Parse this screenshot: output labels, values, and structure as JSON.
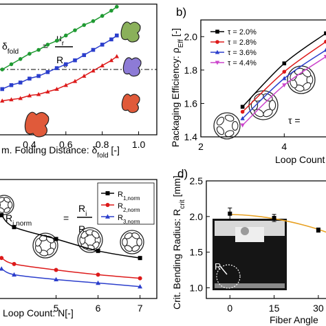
{
  "chart_data": [
    {
      "panel_id": "a",
      "type": "line",
      "panel_label": "",
      "xlabel": "m. Folding Distance: δ",
      "xlabel_sub": "fold",
      "xlabel_unit": " [-]",
      "xlim": [
        0.2,
        1.1
      ],
      "xticks": [
        0.4,
        0.6,
        0.8,
        1.0
      ],
      "xtick_labels": [
        "0.4",
        "0.6",
        "0.8",
        "1.0"
      ],
      "ylim": [
        0,
        1
      ],
      "formula": {
        "lhs": "δ",
        "lhs_sub": "fold",
        "numerator": "u",
        "numerator_sub": "r",
        "denominator": "R",
        "denominator_sub": "0"
      },
      "reference_line": 0.5,
      "series": [
        {
          "color": "#1f9a32",
          "marker": "circle",
          "x": [
            0.25,
            0.3,
            0.35,
            0.4,
            0.45,
            0.5,
            0.55,
            0.6,
            0.65,
            0.7,
            0.75,
            0.8,
            0.85,
            0.88
          ],
          "y": [
            0.5,
            0.54,
            0.58,
            0.62,
            0.65,
            0.69,
            0.72,
            0.76,
            0.8,
            0.84,
            0.87,
            0.91,
            0.95,
            0.98
          ]
        },
        {
          "color": "#2b3ecc",
          "marker": "square",
          "x": [
            0.25,
            0.3,
            0.35,
            0.4,
            0.45,
            0.5,
            0.55,
            0.6,
            0.65,
            0.7,
            0.75,
            0.8,
            0.85,
            0.88
          ],
          "y": [
            0.35,
            0.38,
            0.4,
            0.43,
            0.45,
            0.48,
            0.51,
            0.54,
            0.57,
            0.61,
            0.65,
            0.69,
            0.73,
            0.76
          ]
        },
        {
          "color": "#dd1a1a",
          "marker": "triangle",
          "x": [
            0.25,
            0.3,
            0.35,
            0.4,
            0.45,
            0.5,
            0.55,
            0.6,
            0.65,
            0.7,
            0.75,
            0.8,
            0.85,
            0.88
          ],
          "y": [
            0.26,
            0.27,
            0.28,
            0.3,
            0.31,
            0.33,
            0.35,
            0.38,
            0.41,
            0.45,
            0.49,
            0.53,
            0.57,
            0.6
          ]
        }
      ]
    },
    {
      "panel_id": "b",
      "type": "line",
      "panel_label": "b)",
      "xlabel": "Loop Count",
      "ylabel": "Packaging Efficiency: ρ",
      "ylabel_sub": "Eff",
      "ylabel_unit": " [-]",
      "xlim": [
        2,
        5.1
      ],
      "xticks": [
        2,
        4
      ],
      "xtick_labels": [
        "2",
        "4"
      ],
      "ylim": [
        1.4,
        2.1
      ],
      "yticks": [
        1.4,
        1.6,
        1.8,
        2.0
      ],
      "ytick_labels": [
        "1.4",
        "1.6",
        "1.8",
        "2.0"
      ],
      "annotation": "τ =",
      "series": [
        {
          "name": "τ = 2.0%",
          "color": "#000000",
          "marker": "square",
          "x": [
            3,
            4,
            5
          ],
          "y": [
            1.58,
            1.84,
            2.02
          ]
        },
        {
          "name": "τ = 2.8%",
          "color": "#dd1a1a",
          "marker": "circle",
          "x": [
            3,
            4,
            5
          ],
          "y": [
            1.55,
            1.79,
            1.97
          ]
        },
        {
          "name": "τ = 3.6%",
          "color": "#2b3ecc",
          "marker": "triangle",
          "x": [
            3,
            4,
            5
          ],
          "y": [
            1.51,
            1.75,
            1.92
          ]
        },
        {
          "name": "τ = 4.4%",
          "color": "#cc44cc",
          "marker": "triangle-down",
          "x": [
            3,
            4,
            5
          ],
          "y": [
            1.47,
            1.71,
            1.88
          ]
        }
      ]
    },
    {
      "panel_id": "c",
      "type": "line",
      "panel_label": "",
      "xlabel": "Loop Count:  N[-]",
      "xlim": [
        3.5,
        7.4
      ],
      "xticks": [
        5,
        6,
        7
      ],
      "xtick_labels": [
        "5",
        "6",
        "7"
      ],
      "ylim": [
        0,
        1
      ],
      "formula": {
        "lhs": "R",
        "lhs_sub": "i,norm",
        "numerator": "R",
        "numerator_sub": "i",
        "denominator": "R",
        "denominator_sub": "c"
      },
      "series": [
        {
          "name": "R",
          "name_sub": "1,norm",
          "color": "#000000",
          "marker": "square",
          "x": [
            3.7,
            4,
            5,
            6,
            7
          ],
          "y": [
            0.7,
            0.6,
            0.5,
            0.4,
            0.34
          ]
        },
        {
          "name": "R",
          "name_sub": "2,norm",
          "color": "#dd1a1a",
          "marker": "circle",
          "x": [
            3.7,
            4,
            5,
            6,
            7
          ],
          "y": [
            0.34,
            0.29,
            0.24,
            0.2,
            0.17
          ]
        },
        {
          "name": "R",
          "name_sub": "3,norm",
          "color": "#2b3ecc",
          "marker": "triangle",
          "x": [
            3.7,
            4,
            5,
            6,
            7
          ],
          "y": [
            0.25,
            0.2,
            0.16,
            0.13,
            0.1
          ]
        }
      ]
    },
    {
      "panel_id": "d",
      "type": "scatter",
      "panel_label": "d)",
      "xlabel": "Fiber Angle",
      "ylabel": "Crit. Bending Radius: R",
      "ylabel_sub": "crit",
      "ylabel_unit": " [mm]",
      "xlim": [
        -8,
        34
      ],
      "xticks": [
        0,
        15,
        30
      ],
      "xtick_labels": [
        "0",
        "15",
        "30"
      ],
      "ylim": [
        0.85,
        2.5
      ],
      "yticks": [
        1.0,
        1.5,
        2.0,
        2.5
      ],
      "ytick_labels": [
        "1.0",
        "1.5",
        "2.0",
        "2.5"
      ],
      "inset_label": "R",
      "series": [
        {
          "color": "#000000",
          "marker": "square",
          "x": [
            0,
            15,
            30
          ],
          "y": [
            2.04,
            1.98,
            1.81
          ],
          "error": [
            0.08,
            0.05,
            0.03
          ]
        }
      ],
      "fit_color": "#e8a020",
      "fit_x": [
        0,
        5,
        10,
        15,
        20,
        25,
        30,
        34
      ],
      "fit_y": [
        2.03,
        2.02,
        2.0,
        1.97,
        1.93,
        1.88,
        1.82,
        1.76
      ]
    }
  ],
  "colors": {
    "green": "#1f9a32",
    "blue": "#2b3ecc",
    "red": "#dd1a1a",
    "magenta": "#cc44cc",
    "orange": "#e8a020"
  }
}
